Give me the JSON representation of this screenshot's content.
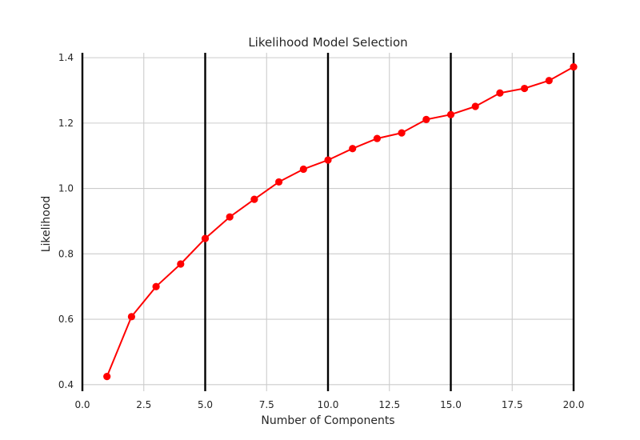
{
  "chart_data": {
    "type": "line",
    "title": "Likelihood Model Selection",
    "xlabel": "Number of Components",
    "ylabel": "Likelihood",
    "xlim": [
      0,
      20
    ],
    "ylim": [
      0.38,
      1.415
    ],
    "x_ticks": [
      0.0,
      2.5,
      5.0,
      7.5,
      10.0,
      12.5,
      15.0,
      17.5,
      20.0
    ],
    "x_tick_labels": [
      "0.0",
      "2.5",
      "5.0",
      "7.5",
      "10.0",
      "12.5",
      "15.0",
      "17.5",
      "20.0"
    ],
    "y_ticks": [
      0.4,
      0.6,
      0.8,
      1.0,
      1.2,
      1.4
    ],
    "y_tick_labels": [
      "0.4",
      "0.6",
      "0.8",
      "1.0",
      "1.2",
      "1.4"
    ],
    "grid": true,
    "vertical_lines": [
      0,
      5,
      10,
      15,
      20
    ],
    "series": [
      {
        "color": "#ff0000",
        "marker": "circle",
        "x": [
          1,
          2,
          3,
          4,
          5,
          6,
          7,
          8,
          9,
          10,
          11,
          12,
          13,
          14,
          15,
          16,
          17,
          18,
          19,
          20
        ],
        "values": [
          0.425,
          0.608,
          0.7,
          0.769,
          0.847,
          0.913,
          0.967,
          1.02,
          1.059,
          1.087,
          1.122,
          1.153,
          1.17,
          1.211,
          1.226,
          1.251,
          1.292,
          1.306,
          1.33,
          1.372
        ]
      }
    ],
    "colors": {
      "grid": "#cccccc",
      "vline": "#000000",
      "text": "#262626"
    }
  }
}
